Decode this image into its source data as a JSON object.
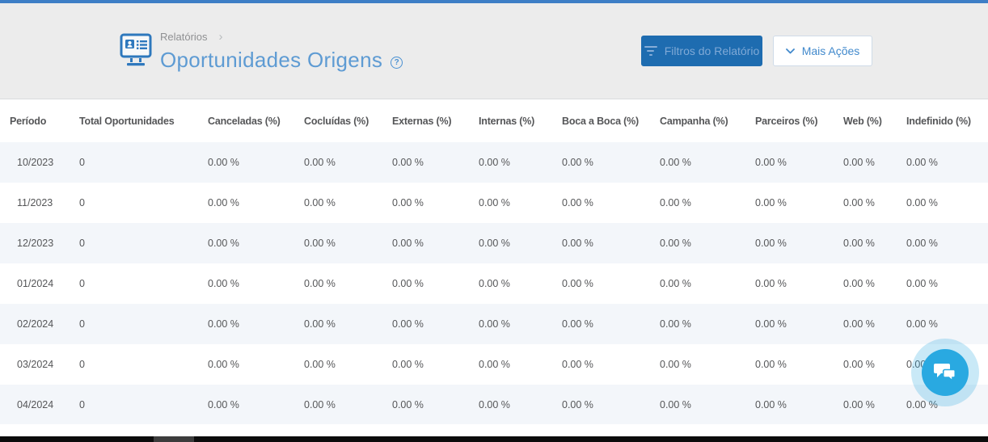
{
  "header": {
    "breadcrumb": "Relatórios",
    "breadcrumb_chevron": "›",
    "title": "Oportunidades Origens",
    "help_glyph": "?",
    "filters_button_label": "Filtros do Relatório",
    "more_actions_label": "Mais Ações"
  },
  "table": {
    "columns": [
      "Período",
      "Total Oportunidades",
      "Canceladas (%)",
      "Cocluídas (%)",
      "Externas (%)",
      "Internas (%)",
      "Boca a Boca (%)",
      "Campanha (%)",
      "Parceiros (%)",
      "Web (%)",
      "Indefinido (%)"
    ],
    "rows": [
      [
        "10/2023",
        "0",
        "0.00 %",
        "0.00 %",
        "0.00 %",
        "0.00 %",
        "0.00 %",
        "0.00 %",
        "0.00 %",
        "0.00 %",
        "0.00 %"
      ],
      [
        "11/2023",
        "0",
        "0.00 %",
        "0.00 %",
        "0.00 %",
        "0.00 %",
        "0.00 %",
        "0.00 %",
        "0.00 %",
        "0.00 %",
        "0.00 %"
      ],
      [
        "12/2023",
        "0",
        "0.00 %",
        "0.00 %",
        "0.00 %",
        "0.00 %",
        "0.00 %",
        "0.00 %",
        "0.00 %",
        "0.00 %",
        "0.00 %"
      ],
      [
        "01/2024",
        "0",
        "0.00 %",
        "0.00 %",
        "0.00 %",
        "0.00 %",
        "0.00 %",
        "0.00 %",
        "0.00 %",
        "0.00 %",
        "0.00 %"
      ],
      [
        "02/2024",
        "0",
        "0.00 %",
        "0.00 %",
        "0.00 %",
        "0.00 %",
        "0.00 %",
        "0.00 %",
        "0.00 %",
        "0.00 %",
        "0.00 %"
      ],
      [
        "03/2024",
        "0",
        "0.00 %",
        "0.00 %",
        "0.00 %",
        "0.00 %",
        "0.00 %",
        "0.00 %",
        "0.00 %",
        "0.00 %",
        "0.00 %"
      ],
      [
        "04/2024",
        "0",
        "0.00 %",
        "0.00 %",
        "0.00 %",
        "0.00 %",
        "0.00 %",
        "0.00 %",
        "0.00 %",
        "0.00 %",
        "0.00 %"
      ]
    ]
  },
  "icons": {
    "report": "report-monitor-icon",
    "filter": "filter-icon",
    "chevron_down": "chevron-down-icon",
    "help": "help-circle-icon",
    "chat": "chat-bubbles-icon"
  },
  "colors": {
    "top_line": "#3d7ec6",
    "header_bg": "#ececec",
    "title_blue": "#5e9bd3",
    "icon_blue": "#2e78bd",
    "primary_button_bg": "#1e6cb0",
    "primary_button_text": "#7fa9d6",
    "secondary_button_text": "#4189cc",
    "alt_row_bg": "#f3f6fa",
    "table_text": "#555658",
    "chat_bubble_blue": "#29a9e1"
  }
}
